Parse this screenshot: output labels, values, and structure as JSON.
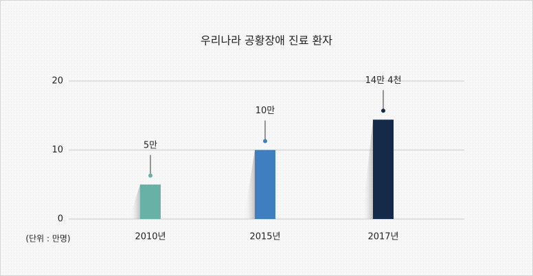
{
  "chart_data": {
    "type": "bar",
    "title": "우리나라 공황장애 진료 환자",
    "categories": [
      "2010년",
      "2015년",
      "2017년"
    ],
    "series": [
      {
        "name": null,
        "colors": [
          "#67b1a6",
          "#3f7fc1",
          "#142a4a"
        ],
        "values": [
          5,
          10,
          14.4
        ],
        "value_labels": [
          "5만",
          "10만",
          "14만 4천"
        ]
      }
    ],
    "unit_label": "(단위 : 만명)",
    "ylim": [
      0,
      20
    ],
    "yticks": [
      0,
      10,
      20
    ],
    "grid": true
  }
}
